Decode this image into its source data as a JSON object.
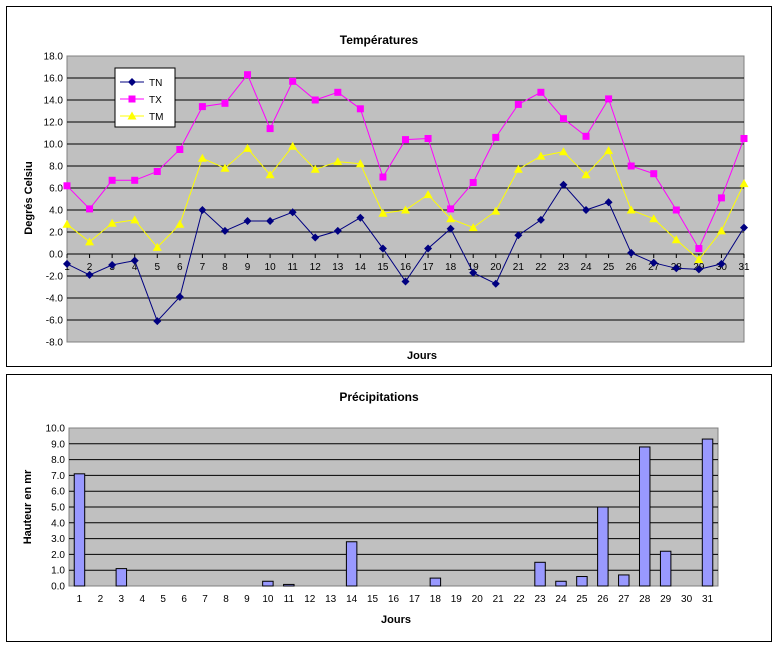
{
  "chart_data": [
    {
      "type": "line",
      "title": "Températures",
      "xlabel": "Jours",
      "ylabel": "Degrés Celsiu",
      "ylim": [
        -8,
        18
      ],
      "yticks": [
        "-8.0",
        "-6.0",
        "-4.0",
        "-2.0",
        "0.0",
        "2.0",
        "4.0",
        "6.0",
        "8.0",
        "10.0",
        "12.0",
        "14.0",
        "16.0",
        "18.0"
      ],
      "categories": [
        "1",
        "2",
        "3",
        "4",
        "5",
        "6",
        "7",
        "8",
        "9",
        "10",
        "11",
        "12",
        "13",
        "14",
        "15",
        "16",
        "17",
        "18",
        "19",
        "20",
        "21",
        "22",
        "23",
        "24",
        "25",
        "26",
        "27",
        "28",
        "29",
        "30",
        "31"
      ],
      "grid": true,
      "legend": "top-left",
      "series": [
        {
          "name": "TN",
          "color": "#000080",
          "marker": "diamond",
          "values": [
            -0.9,
            -1.9,
            -1.0,
            -0.6,
            -6.1,
            -3.9,
            4.0,
            2.1,
            3.0,
            3.0,
            3.8,
            1.5,
            2.1,
            3.3,
            0.5,
            -2.5,
            0.5,
            2.3,
            -1.7,
            -2.7,
            1.7,
            3.1,
            6.3,
            4.0,
            4.7,
            0.1,
            -0.8,
            -1.3,
            -1.4,
            -0.9,
            2.4
          ]
        },
        {
          "name": "TX",
          "color": "#ff00ff",
          "marker": "square",
          "values": [
            6.2,
            4.1,
            6.7,
            6.7,
            7.5,
            9.5,
            13.4,
            13.7,
            16.3,
            11.4,
            15.7,
            14.0,
            14.7,
            13.2,
            7.0,
            10.4,
            10.5,
            4.1,
            6.5,
            10.6,
            13.6,
            14.7,
            12.3,
            10.7,
            14.1,
            8.0,
            7.3,
            4.0,
            0.5,
            5.1,
            10.5
          ]
        },
        {
          "name": "TM",
          "color": "#ffff00",
          "marker": "triangle",
          "values": [
            2.7,
            1.1,
            2.8,
            3.1,
            0.6,
            2.7,
            8.7,
            7.8,
            9.6,
            7.2,
            9.8,
            7.7,
            8.4,
            8.2,
            3.7,
            4.0,
            5.4,
            3.2,
            2.4,
            3.9,
            7.7,
            8.9,
            9.3,
            7.2,
            9.4,
            4.0,
            3.2,
            1.3,
            -0.5,
            2.1,
            6.4
          ]
        }
      ]
    },
    {
      "type": "bar",
      "title": "Précipitations",
      "xlabel": "Jours",
      "ylabel": "Hauteur en mr",
      "ylim": [
        0,
        10
      ],
      "yticks": [
        "0.0",
        "1.0",
        "2.0",
        "3.0",
        "4.0",
        "5.0",
        "6.0",
        "7.0",
        "8.0",
        "9.0",
        "10.0"
      ],
      "categories": [
        "1",
        "2",
        "3",
        "4",
        "5",
        "6",
        "7",
        "8",
        "9",
        "10",
        "11",
        "12",
        "13",
        "14",
        "15",
        "16",
        "17",
        "18",
        "19",
        "20",
        "21",
        "22",
        "23",
        "24",
        "25",
        "26",
        "27",
        "28",
        "29",
        "30",
        "31"
      ],
      "grid": true,
      "bar_color": "#9999ff",
      "series": [
        {
          "values": [
            7.1,
            0,
            1.1,
            0,
            0,
            0,
            0,
            0,
            0,
            0.3,
            0.1,
            0,
            0,
            2.8,
            0,
            0,
            0,
            0.5,
            0,
            0,
            0,
            0,
            1.5,
            0.3,
            0.6,
            5.0,
            0.7,
            8.8,
            2.2,
            0,
            9.3
          ]
        }
      ]
    }
  ]
}
